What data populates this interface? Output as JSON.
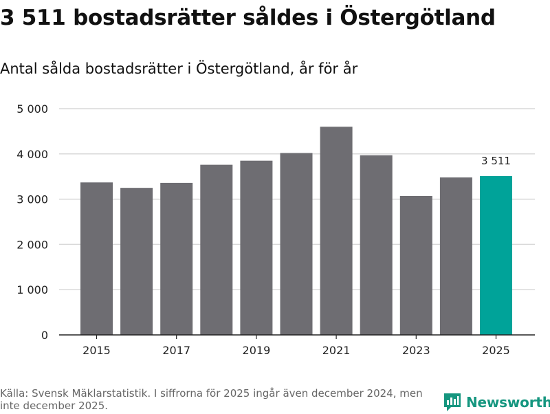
{
  "chart_data": {
    "type": "bar",
    "title": "3 511 bostadsrätter såldes i Östergötland",
    "subtitle": "Antal sålda bostadsrätter i Östergötland, år för år",
    "categories": [
      "2015",
      "2016",
      "2017",
      "2018",
      "2019",
      "2020",
      "2021",
      "2022",
      "2023",
      "2024",
      "2025"
    ],
    "values": [
      3370,
      3250,
      3360,
      3760,
      3850,
      4020,
      4600,
      3970,
      3070,
      3480,
      3511
    ],
    "ylim": [
      0,
      5000
    ],
    "yticks": [
      {
        "value": 0,
        "label": "0"
      },
      {
        "value": 1000,
        "label": "1 000"
      },
      {
        "value": 2000,
        "label": "2 000"
      },
      {
        "value": 3000,
        "label": "3 000"
      },
      {
        "value": 4000,
        "label": "4 000"
      },
      {
        "value": 5000,
        "label": "5 000"
      }
    ],
    "xtick_labels": [
      "2015",
      "2017",
      "2019",
      "2021",
      "2023",
      "2025"
    ],
    "annotation": {
      "category": "2025",
      "label": "3 511"
    },
    "grid": true,
    "colors": {
      "default": "#6e6d72",
      "highlight": "#00a399",
      "grid": "#d9d9d9",
      "axis": "#222222"
    }
  },
  "footer": {
    "source": "Källa: Svensk Mäklarstatistik. I siffrorna för 2025 ingår även december 2024, men inte december 2025."
  },
  "brand": {
    "name": "Newsworthy",
    "icon": "newsworthy-logo-icon",
    "color": "#15967f"
  }
}
